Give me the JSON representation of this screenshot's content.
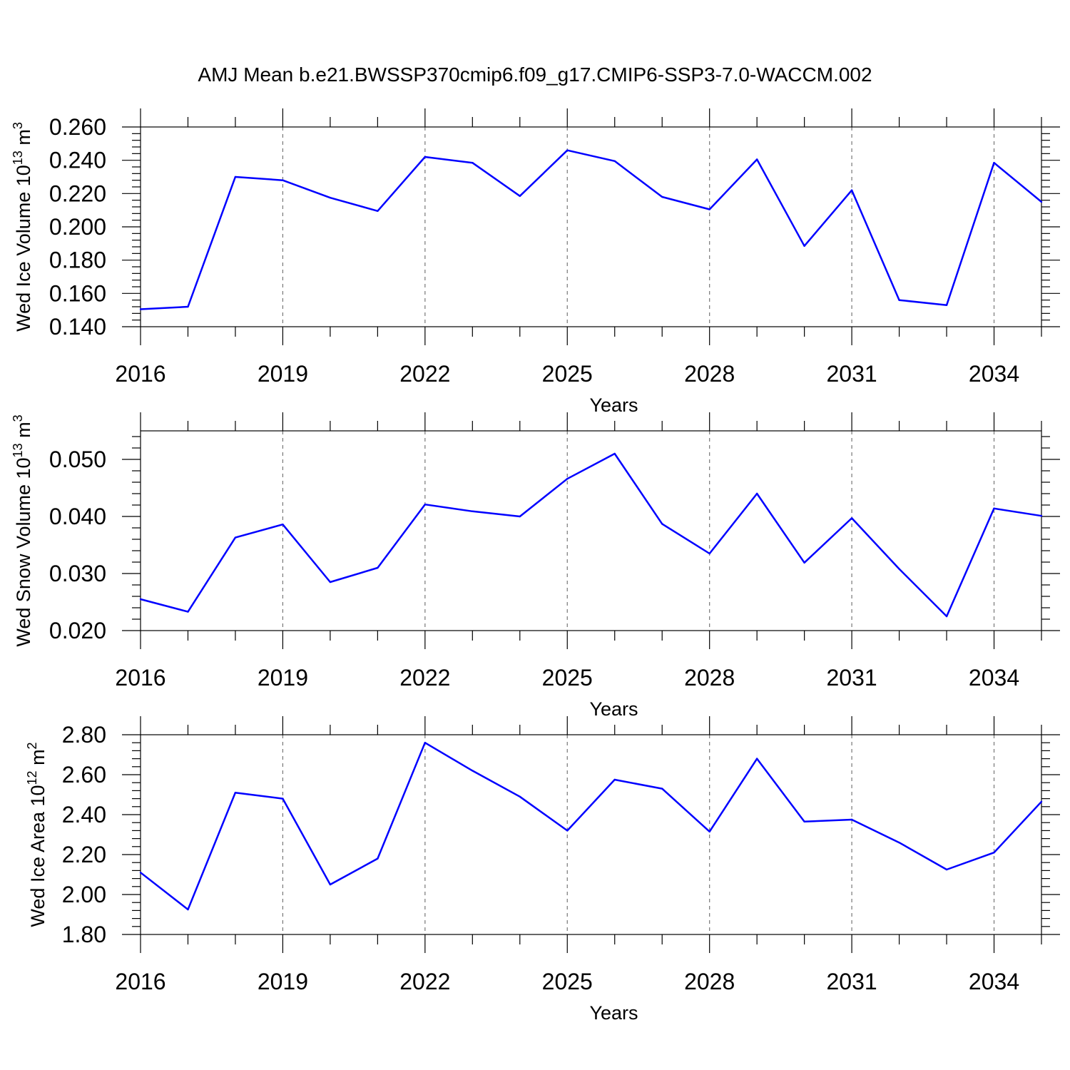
{
  "title": "AMJ Mean b.e21.BWSSP370cmip6.f09_g17.CMIP6-SSP3-7.0-WACCM.002",
  "colors": {
    "line": "#0000ff",
    "axes": "#000000",
    "grid": "#777777"
  },
  "chart_data": [
    {
      "type": "line",
      "ylabel_main": "Wed Ice Volume 10",
      "ylabel_exp": "13",
      "ylabel_unit": " m",
      "ylabel_unit_exp": "3",
      "xlabel": "Years",
      "xlim": [
        2016,
        2035
      ],
      "ylim": [
        0.14,
        0.26
      ],
      "xticks": [
        2016,
        2019,
        2022,
        2025,
        2028,
        2031,
        2034
      ],
      "yticks": [
        "0.140",
        "0.160",
        "0.180",
        "0.200",
        "0.220",
        "0.240",
        "0.260"
      ],
      "grid": "vertical dashed at major x ticks",
      "series": [
        {
          "x": [
            2016,
            2017,
            2018,
            2019,
            2020,
            2021,
            2022,
            2023,
            2024,
            2025,
            2026,
            2027,
            2028,
            2029,
            2030,
            2031,
            2032,
            2033,
            2034,
            2035
          ],
          "values": [
            0.1505,
            0.152,
            0.23,
            0.228,
            0.2175,
            0.2095,
            0.242,
            0.2385,
            0.2185,
            0.246,
            0.2395,
            0.218,
            0.2105,
            0.2405,
            0.1885,
            0.222,
            0.156,
            0.153,
            0.2385,
            0.215
          ]
        }
      ]
    },
    {
      "type": "line",
      "ylabel_main": "Wed Snow Volume 10",
      "ylabel_exp": "13",
      "ylabel_unit": " m",
      "ylabel_unit_exp": "3",
      "xlabel": "Years",
      "xlim": [
        2016,
        2035
      ],
      "ylim": [
        0.02,
        0.055
      ],
      "xticks": [
        2016,
        2019,
        2022,
        2025,
        2028,
        2031,
        2034
      ],
      "yticks": [
        "0.020",
        "0.030",
        "0.040",
        "0.050"
      ],
      "grid": "vertical dashed at major x ticks",
      "series": [
        {
          "x": [
            2016,
            2017,
            2018,
            2019,
            2020,
            2021,
            2022,
            2023,
            2024,
            2025,
            2026,
            2027,
            2028,
            2029,
            2030,
            2031,
            2032,
            2033,
            2034,
            2035
          ],
          "values": [
            0.0255,
            0.0233,
            0.0363,
            0.0386,
            0.0285,
            0.031,
            0.0421,
            0.0409,
            0.04,
            0.0466,
            0.051,
            0.0387,
            0.0335,
            0.044,
            0.0319,
            0.0397,
            0.0308,
            0.0225,
            0.0414,
            0.0401
          ]
        }
      ]
    },
    {
      "type": "line",
      "ylabel_main": "Wed Ice Area 10",
      "ylabel_exp": "12",
      "ylabel_unit": " m",
      "ylabel_unit_exp": "2",
      "xlabel": "Years",
      "xlim": [
        2016,
        2035
      ],
      "ylim": [
        1.8,
        2.8
      ],
      "xticks": [
        2016,
        2019,
        2022,
        2025,
        2028,
        2031,
        2034
      ],
      "yticks": [
        "1.80",
        "2.00",
        "2.20",
        "2.40",
        "2.60",
        "2.80"
      ],
      "grid": "vertical dashed at major x ticks",
      "series": [
        {
          "x": [
            2016,
            2017,
            2018,
            2019,
            2020,
            2021,
            2022,
            2023,
            2024,
            2025,
            2026,
            2027,
            2028,
            2029,
            2030,
            2031,
            2032,
            2033,
            2034,
            2035
          ],
          "values": [
            2.11,
            1.925,
            2.51,
            2.48,
            2.05,
            2.18,
            2.76,
            2.62,
            2.49,
            2.32,
            2.575,
            2.53,
            2.315,
            2.68,
            2.365,
            2.375,
            2.26,
            2.125,
            2.21,
            2.465
          ]
        }
      ]
    }
  ]
}
